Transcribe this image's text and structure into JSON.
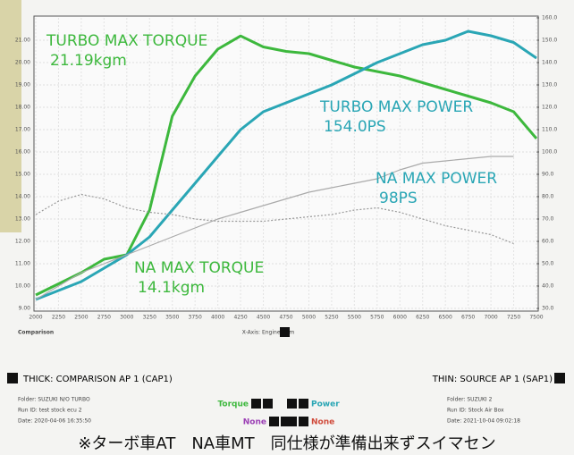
{
  "chart_data": {
    "type": "line",
    "x_label": "X-Axis: Engine Rpm",
    "footer_left": "Comparison",
    "x": [
      2000,
      2250,
      2500,
      2750,
      3000,
      3250,
      3500,
      3750,
      4000,
      4250,
      4500,
      4750,
      5000,
      5250,
      5500,
      5750,
      6000,
      6250,
      6500,
      6750,
      7000,
      7250,
      7500
    ],
    "xlim": [
      2000,
      7500
    ],
    "xticks": [
      2000,
      2250,
      2500,
      2750,
      3000,
      3250,
      3500,
      3750,
      4000,
      4250,
      4500,
      4750,
      5000,
      5250,
      5500,
      5750,
      6000,
      6250,
      6500,
      6750,
      7000,
      7250,
      7500
    ],
    "ylim": [
      9,
      22
    ],
    "yticks": [
      {
        "value": 9,
        "label": "9.00"
      },
      {
        "value": 10,
        "label": "10.00"
      },
      {
        "value": 11,
        "label": "11.00"
      },
      {
        "value": 12,
        "label": "12.00"
      },
      {
        "value": 13,
        "label": "13.00"
      },
      {
        "value": 14,
        "label": "14.00"
      },
      {
        "value": 15,
        "label": "15.00"
      },
      {
        "value": 16,
        "label": "16.00"
      },
      {
        "value": 17,
        "label": "17.00"
      },
      {
        "value": 18,
        "label": "18.00"
      },
      {
        "value": 19,
        "label": "19.00"
      },
      {
        "value": 20,
        "label": "20.00"
      },
      {
        "value": 21,
        "label": "21.00"
      }
    ],
    "y2lim": [
      30,
      160
    ],
    "y2ticks": [
      {
        "value": 30,
        "label": "30.0"
      },
      {
        "value": 40,
        "label": "40.0"
      },
      {
        "value": 50,
        "label": "50.0"
      },
      {
        "value": 60,
        "label": "60.0"
      },
      {
        "value": 70,
        "label": "70.0"
      },
      {
        "value": 80,
        "label": "80.0"
      },
      {
        "value": 90,
        "label": "90.0"
      },
      {
        "value": 100,
        "label": "100.0"
      },
      {
        "value": 110,
        "label": "110.0"
      },
      {
        "value": 120,
        "label": "120.0"
      },
      {
        "value": 130,
        "label": "130.0"
      },
      {
        "value": 140,
        "label": "140.0"
      },
      {
        "value": 150,
        "label": "150.0"
      },
      {
        "value": 160,
        "label": "160.0"
      }
    ],
    "grid": true,
    "series": [
      {
        "name": "TURBO Torque",
        "color": "#3db83d",
        "width": 3,
        "axis": "y",
        "values": [
          9.6,
          10.1,
          10.6,
          11.2,
          11.4,
          13.4,
          17.6,
          19.4,
          20.6,
          21.19,
          20.7,
          20.5,
          20.4,
          20.1,
          19.8,
          19.6,
          19.4,
          19.1,
          18.8,
          18.5,
          18.2,
          17.8,
          16.6
        ]
      },
      {
        "name": "TURBO Power",
        "color": "#2aa6b5",
        "width": 3,
        "axis": "y2",
        "values": [
          34,
          38,
          42,
          48,
          54,
          62,
          74,
          86,
          98,
          110,
          118,
          122,
          126,
          130,
          135,
          140,
          144,
          148,
          150,
          154,
          152,
          149,
          142
        ]
      },
      {
        "name": "NA Torque",
        "color": "#999999",
        "width": 1.2,
        "dash": true,
        "axis": "y",
        "values": [
          13.2,
          13.8,
          14.1,
          13.9,
          13.5,
          13.3,
          13.2,
          13.0,
          12.9,
          12.9,
          12.9,
          13.0,
          13.1,
          13.2,
          13.4,
          13.5,
          13.3,
          13.0,
          12.7,
          12.5,
          12.3,
          11.9,
          null
        ]
      },
      {
        "name": "NA Power",
        "color": "#aaaaaa",
        "width": 1.2,
        "axis": "y2",
        "values": [
          34,
          40,
          46,
          50,
          54,
          58,
          62,
          66,
          70,
          73,
          76,
          79,
          82,
          84,
          86,
          88,
          92,
          95,
          96,
          97,
          98,
          98,
          null
        ]
      }
    ],
    "annotations": [
      {
        "text": "TURBO MAX TORQUE",
        "detail": "21.19kgm",
        "color": "#3db83d"
      },
      {
        "text": "TURBO MAX POWER",
        "detail": "154.0PS",
        "color": "#2aa6b5"
      },
      {
        "text": "NA MAX POWER",
        "detail": "98PS",
        "color": "#2aa6b5"
      },
      {
        "text": "NA MAX TORQUE",
        "detail": "14.1kgm",
        "color": "#3db83d"
      }
    ],
    "legend": {
      "thick": "THICK: COMPARISON AP 1 (CAP1)",
      "thin": "THIN: SOURCE AP 1 (SAP1)",
      "items": [
        {
          "text": "Torque",
          "color": "#3db83d"
        },
        {
          "text": "Power",
          "color": "#2aa6b5"
        },
        {
          "text": "None",
          "color": "#9b3fb5"
        },
        {
          "text": "None",
          "color": "#d04a3a"
        }
      ]
    },
    "run_left": [
      "Folder: SUZUKI N/O TURBO",
      "Run ID: test stock ecu 2",
      "Date: 2020-04-06 16:35:50"
    ],
    "run_right": [
      "Folder: SUZUKI 2",
      "Run ID: Stock Air Box",
      "Date: 2021-10-04 09:02:18"
    ],
    "note": "※ターボ車AT　NA車MT　同仕様が準備出来ずスイマセン"
  }
}
